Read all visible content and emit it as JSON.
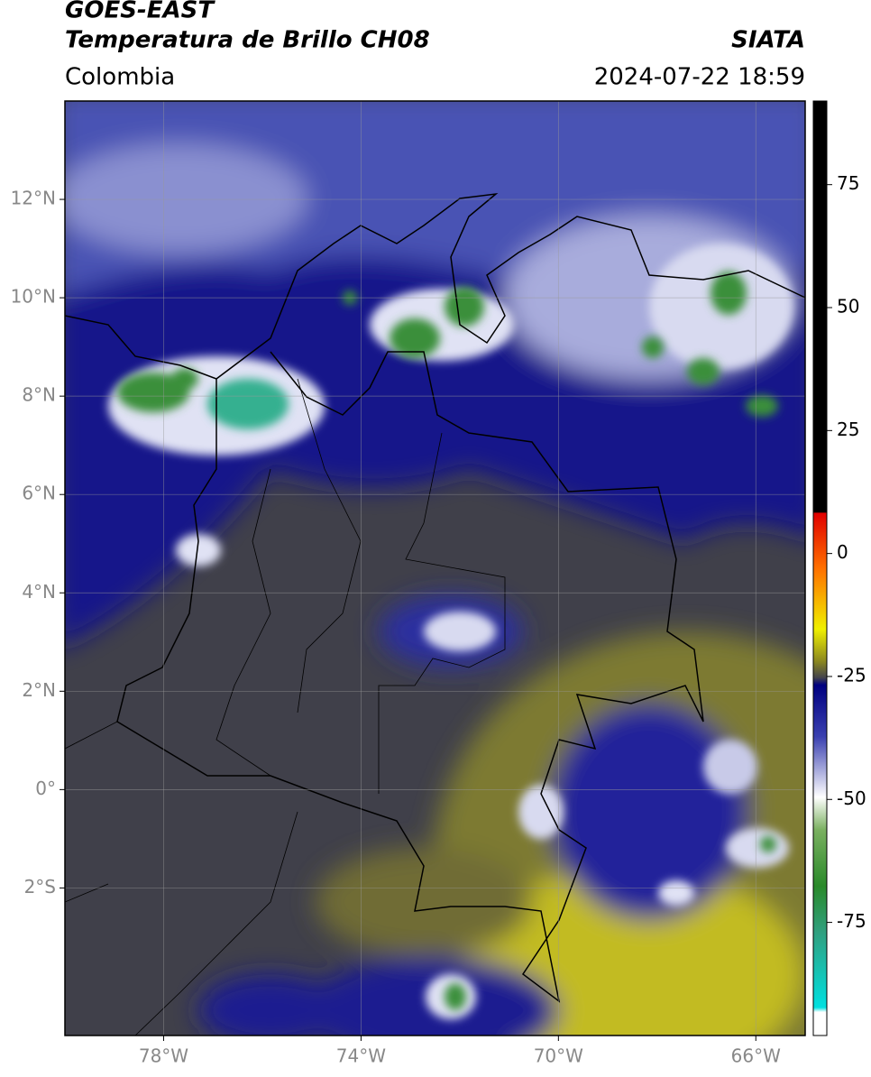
{
  "header": {
    "title": "GOES-EAST",
    "subtitle": "Temperatura de Brillo CH08",
    "region": "Colombia",
    "source": "SIATA",
    "datetime": "2024-07-22 18:59"
  },
  "map": {
    "lon_range": [
      -80,
      -65
    ],
    "lat_range": [
      -5,
      14
    ],
    "lat_ticks": [
      {
        "value": 12,
        "label": "12°N"
      },
      {
        "value": 10,
        "label": "10°N"
      },
      {
        "value": 8,
        "label": "8°N"
      },
      {
        "value": 6,
        "label": "6°N"
      },
      {
        "value": 4,
        "label": "4°N"
      },
      {
        "value": 2,
        "label": "2°N"
      },
      {
        "value": 0,
        "label": "0°"
      },
      {
        "value": -2,
        "label": "2°S"
      }
    ],
    "lon_ticks": [
      {
        "value": -78,
        "label": "78°W"
      },
      {
        "value": -74,
        "label": "74°W"
      },
      {
        "value": -70,
        "label": "70°W"
      },
      {
        "value": -66,
        "label": "66°W"
      }
    ]
  },
  "colorbar": {
    "range": [
      -98,
      92
    ],
    "ticks": [
      75,
      50,
      25,
      0,
      -25,
      -50,
      -75
    ]
  }
}
